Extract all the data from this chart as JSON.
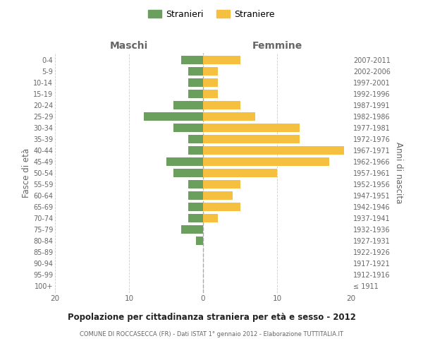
{
  "age_groups": [
    "100+",
    "95-99",
    "90-94",
    "85-89",
    "80-84",
    "75-79",
    "70-74",
    "65-69",
    "60-64",
    "55-59",
    "50-54",
    "45-49",
    "40-44",
    "35-39",
    "30-34",
    "25-29",
    "20-24",
    "15-19",
    "10-14",
    "5-9",
    "0-4"
  ],
  "birth_years": [
    "≤ 1911",
    "1912-1916",
    "1917-1921",
    "1922-1926",
    "1927-1931",
    "1932-1936",
    "1937-1941",
    "1942-1946",
    "1947-1951",
    "1952-1956",
    "1957-1961",
    "1962-1966",
    "1967-1971",
    "1972-1976",
    "1977-1981",
    "1982-1986",
    "1987-1991",
    "1992-1996",
    "1997-2001",
    "2002-2006",
    "2007-2011"
  ],
  "maschi": [
    0,
    0,
    0,
    0,
    1,
    3,
    2,
    2,
    2,
    2,
    4,
    5,
    2,
    2,
    4,
    8,
    4,
    2,
    2,
    2,
    3
  ],
  "femmine": [
    0,
    0,
    0,
    0,
    0,
    0,
    2,
    5,
    4,
    5,
    10,
    17,
    19,
    13,
    13,
    7,
    5,
    2,
    2,
    2,
    5
  ],
  "maschi_color": "#6a9f5e",
  "femmine_color": "#f5c040",
  "grid_color": "#cccccc",
  "dashed_color": "#aaaaaa",
  "text_color": "#666666",
  "title": "Popolazione per cittadinanza straniera per età e sesso - 2012",
  "subtitle": "COMUNE DI ROCCASECCA (FR) - Dati ISTAT 1° gennaio 2012 - Elaborazione TUTTITALIA.IT",
  "xlabel_left": "Maschi",
  "xlabel_right": "Femmine",
  "ylabel_left": "Fasce di età",
  "ylabel_right": "Anni di nascita",
  "legend_maschi": "Stranieri",
  "legend_femmine": "Straniere",
  "xlim": 20,
  "bar_height": 0.75
}
